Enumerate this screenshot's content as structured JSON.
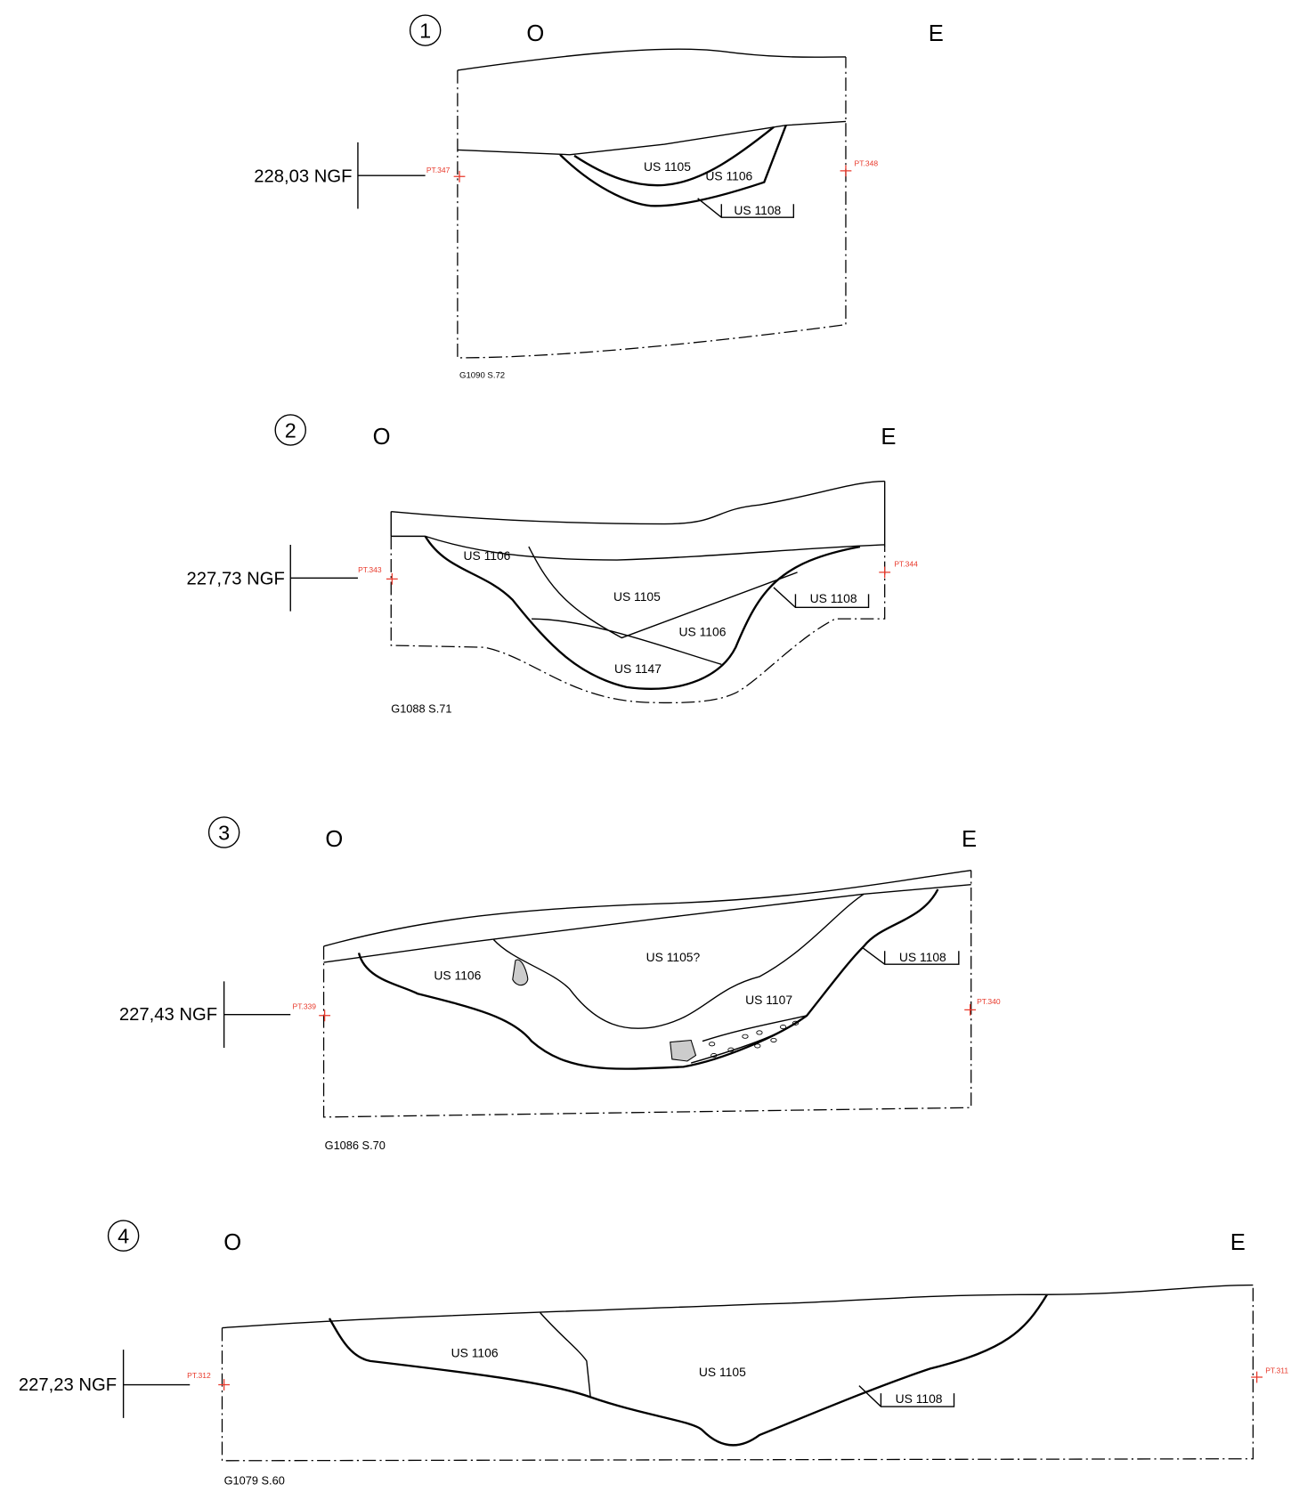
{
  "sections": [
    {
      "number": "1",
      "west": "O",
      "east": "E",
      "elevation": "228,03 NGF",
      "points": [
        "PT.347",
        "PT.348"
      ],
      "units": [
        "US 1105",
        "US 1106",
        "US 1108"
      ],
      "reference": "G1090 S.72"
    },
    {
      "number": "2",
      "west": "O",
      "east": "E",
      "elevation": "227,73 NGF",
      "points": [
        "PT.343",
        "PT.344"
      ],
      "units": [
        "US 1106",
        "US 1105",
        "US 1106",
        "US 1147",
        "US 1108"
      ],
      "reference": "G1088 S.71"
    },
    {
      "number": "3",
      "west": "O",
      "east": "E",
      "elevation": "227,43 NGF",
      "points": [
        "PT.339",
        "PT.340"
      ],
      "units": [
        "US 1106",
        "US 1105?",
        "US 1107",
        "US 1108"
      ],
      "reference": "G1086 S.70"
    },
    {
      "number": "4",
      "west": "O",
      "east": "E",
      "elevation": "227,23 NGF",
      "points": [
        "PT.312",
        "PT.311"
      ],
      "units": [
        "US 1106",
        "US 1105",
        "US 1108"
      ],
      "reference": "G1079 S.60"
    }
  ]
}
